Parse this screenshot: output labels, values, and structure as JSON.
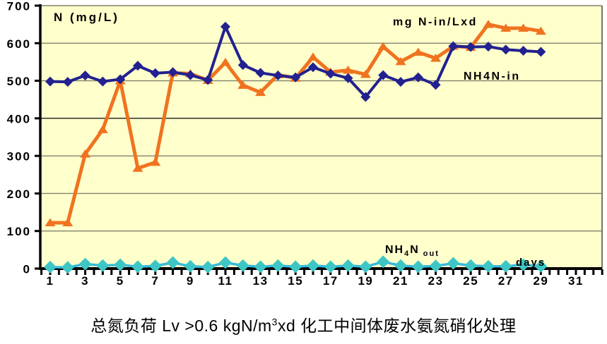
{
  "title": {
    "part1": "总氮负荷 Lv >0.6 kgN/m",
    "sup": "3",
    "part2": "xd 化工中间体废水氨氮硝化处理"
  },
  "chart_data": {
    "type": "line",
    "title": "总氮负荷 Lv >0.6 kgN/m3xd 化工中间体废水氨氮硝化处理",
    "ylabel": "N (mg/L)",
    "xlabel": "days",
    "ylim": [
      0,
      700
    ],
    "y_ticks": [
      0,
      100,
      200,
      300,
      400,
      500,
      600,
      700
    ],
    "x_tick_labels": [
      1,
      3,
      5,
      7,
      9,
      11,
      13,
      15,
      17,
      19,
      21,
      23,
      25,
      27,
      29,
      31
    ],
    "grid": "horizontal",
    "plot_bg": "#FFFFCC",
    "grid_color": "#82826E",
    "grid_color_dark": "#1A1A1A",
    "axis_color": "#000000",
    "x": [
      1,
      2,
      3,
      4,
      5,
      6,
      7,
      8,
      9,
      10,
      11,
      12,
      13,
      14,
      15,
      16,
      17,
      18,
      19,
      20,
      21,
      22,
      23,
      24,
      25,
      26,
      27,
      28,
      29
    ],
    "series": [
      {
        "name": "mg N-in/Lxd",
        "color": "#F0731F",
        "marker": "triangle",
        "values": [
          122,
          122,
          305,
          370,
          500,
          267,
          283,
          521,
          519,
          501,
          549,
          488,
          469,
          516,
          507,
          563,
          523,
          528,
          517,
          591,
          551,
          576,
          560,
          592,
          589,
          650,
          640,
          640,
          632
        ]
      },
      {
        "name": "NH4N-in",
        "color": "#22218F",
        "marker": "diamond",
        "values": [
          498,
          497,
          514,
          498,
          504,
          540,
          520,
          523,
          515,
          502,
          644,
          542,
          521,
          514,
          509,
          536,
          519,
          507,
          457,
          515,
          497,
          509,
          489,
          592,
          590,
          591,
          583,
          580,
          577
        ]
      },
      {
        "name": "NH4N out",
        "color": "#3EC6C6",
        "line_color": "#35B8E0",
        "marker": "diamond",
        "label_parts": {
          "p1": "NH",
          "sub1": "4",
          "p2": "N",
          "sub2": "out"
        },
        "values": [
          4,
          3,
          12,
          8,
          10,
          5,
          7,
          16,
          6,
          4,
          16,
          8,
          5,
          8,
          5,
          8,
          5,
          8,
          5,
          18,
          8,
          5,
          7,
          14,
          8,
          6,
          6,
          10,
          6
        ]
      }
    ]
  }
}
